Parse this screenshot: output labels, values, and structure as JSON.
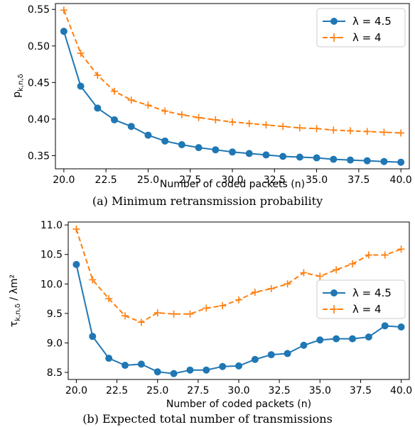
{
  "colors": {
    "series_a": "#1f77b4",
    "series_b": "#ff7f0e"
  },
  "chart_data": [
    {
      "type": "line",
      "caption": "(a) Minimum retransmission probability",
      "xlabel": "Number of coded packets (n)",
      "ylabel": "p",
      "ylabel_sub": "k,n,δ",
      "ylabel_suffix": "",
      "xlim": [
        19.5,
        40.5
      ],
      "ylim": [
        0.332,
        0.558
      ],
      "xticks": [
        20.0,
        22.5,
        25.0,
        27.5,
        30.0,
        32.5,
        35.0,
        37.5,
        40.0
      ],
      "xtick_labels": [
        "20.0",
        "22.5",
        "25.0",
        "27.5",
        "30.0",
        "32.5",
        "35.0",
        "37.5",
        "40.0"
      ],
      "yticks": [
        0.35,
        0.4,
        0.45,
        0.5,
        0.55
      ],
      "ytick_labels": [
        "0.35",
        "0.40",
        "0.45",
        "0.50",
        "0.55"
      ],
      "legend_position": "top-right",
      "x": [
        20,
        21,
        22,
        23,
        24,
        25,
        26,
        27,
        28,
        29,
        30,
        31,
        32,
        33,
        34,
        35,
        36,
        37,
        38,
        39,
        40
      ],
      "series": [
        {
          "name": "λ = 4.5",
          "marker": "circle",
          "linestyle": "solid",
          "values": [
            0.52,
            0.445,
            0.415,
            0.399,
            0.39,
            0.378,
            0.37,
            0.365,
            0.361,
            0.358,
            0.355,
            0.353,
            0.351,
            0.349,
            0.348,
            0.347,
            0.345,
            0.344,
            0.343,
            0.342,
            0.341
          ]
        },
        {
          "name": "λ = 4",
          "marker": "plus",
          "linestyle": "dashed",
          "values": [
            0.549,
            0.49,
            0.46,
            0.438,
            0.426,
            0.419,
            0.411,
            0.406,
            0.402,
            0.399,
            0.396,
            0.394,
            0.392,
            0.39,
            0.388,
            0.387,
            0.385,
            0.384,
            0.383,
            0.382,
            0.381
          ]
        }
      ]
    },
    {
      "type": "line",
      "caption": "(b) Expected total number of transmissions",
      "xlabel": "Number of coded packets (n)",
      "ylabel": "τ",
      "ylabel_sub": "k,n,δ",
      "ylabel_suffix": " / λm²",
      "xlim": [
        19.5,
        40.5
      ],
      "ylim": [
        8.38,
        11.05
      ],
      "xticks": [
        20.0,
        22.5,
        25.0,
        27.5,
        30.0,
        32.5,
        35.0,
        37.5,
        40.0
      ],
      "xtick_labels": [
        "20.0",
        "22.5",
        "25.0",
        "27.5",
        "30.0",
        "32.5",
        "35.0",
        "37.5",
        "40.0"
      ],
      "yticks": [
        8.5,
        9.0,
        9.5,
        10.0,
        10.5,
        11.0
      ],
      "ytick_labels": [
        "8.5",
        "9.0",
        "9.5",
        "10.0",
        "10.5",
        "11.0"
      ],
      "legend_position": "center-right",
      "x": [
        20,
        21,
        22,
        23,
        24,
        25,
        26,
        27,
        28,
        29,
        30,
        31,
        32,
        33,
        34,
        35,
        36,
        37,
        38,
        39,
        40
      ],
      "series": [
        {
          "name": "λ = 4.5",
          "marker": "circle",
          "linestyle": "solid",
          "values": [
            10.33,
            9.11,
            8.74,
            8.62,
            8.64,
            8.51,
            8.48,
            8.54,
            8.54,
            8.6,
            8.61,
            8.72,
            8.8,
            8.82,
            8.96,
            9.05,
            9.07,
            9.07,
            9.1,
            9.29,
            9.27
          ]
        },
        {
          "name": "λ = 4",
          "marker": "plus",
          "linestyle": "dashed",
          "values": [
            10.93,
            10.07,
            9.75,
            9.46,
            9.35,
            9.51,
            9.49,
            9.49,
            9.59,
            9.63,
            9.73,
            9.86,
            9.92,
            10.0,
            10.19,
            10.13,
            10.24,
            10.34,
            10.49,
            10.49,
            10.59
          ]
        }
      ]
    }
  ]
}
